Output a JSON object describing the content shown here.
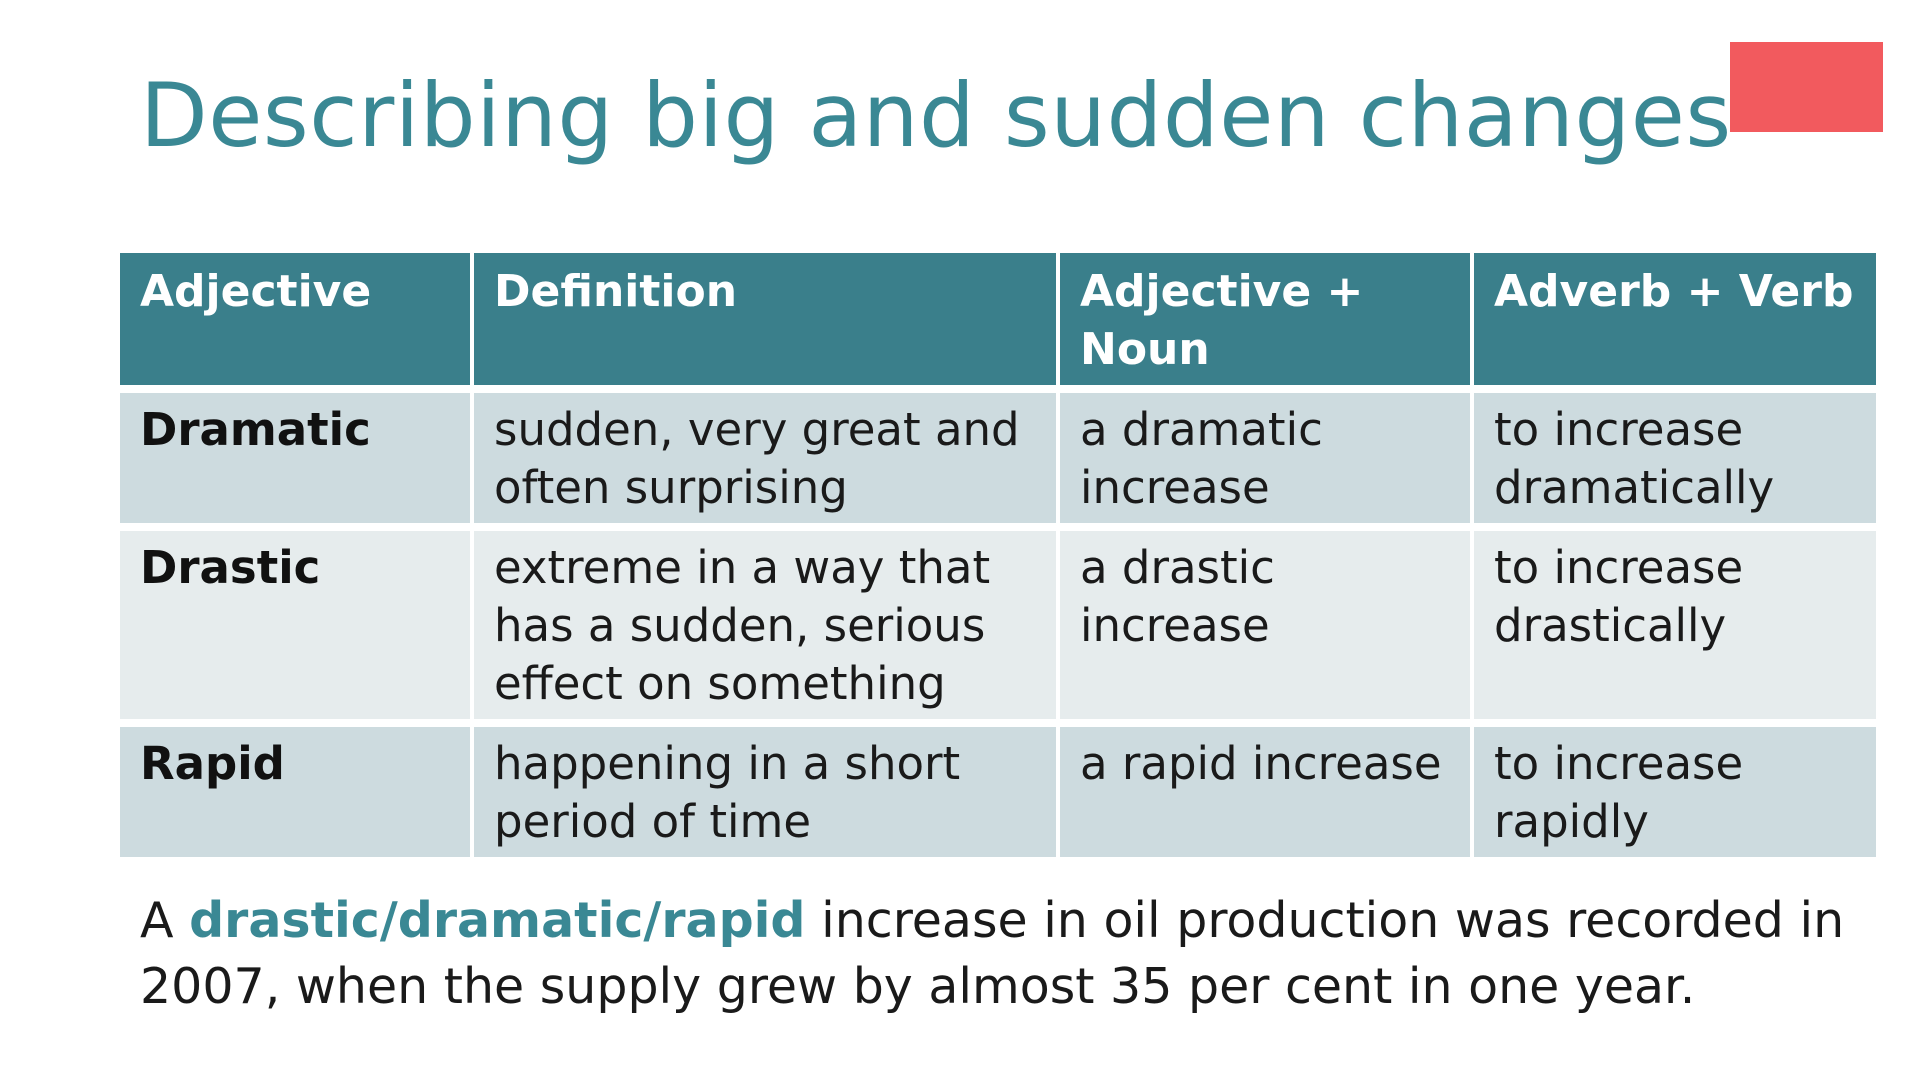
{
  "slide": {
    "title": "Describing big and sudden changes",
    "accent_color": "#f25a5e",
    "table": {
      "headers": [
        "Adjective",
        "Definition",
        "Adjective + Noun",
        "Adverb + Verb"
      ],
      "rows": [
        {
          "adjective": "Dramatic",
          "definition": "sudden, very great and often surprising",
          "adjective_noun": "a dramatic increase",
          "adverb_verb": "to increase dramatically"
        },
        {
          "adjective": "Drastic",
          "definition": "extreme in a way that has a sudden, serious effect on something",
          "adjective_noun": "a drastic increase",
          "adverb_verb": "to increase drastically"
        },
        {
          "adjective": "Rapid",
          "definition": "happening in a short period of time",
          "adjective_noun": "a rapid increase",
          "adverb_verb": "to increase rapidly"
        }
      ]
    },
    "example": {
      "prefix": "A ",
      "highlight": "drastic/dramatic/rapid",
      "suffix": " increase in oil production was recorded in 2007, when the supply grew by almost 35 per cent in one year."
    }
  },
  "colors": {
    "title": "#3a8894",
    "header_bg": "#3a7f8b",
    "row_odd_bg": "#cddbdf",
    "row_even_bg": "#e6eced",
    "accent": "#f25a5e"
  }
}
